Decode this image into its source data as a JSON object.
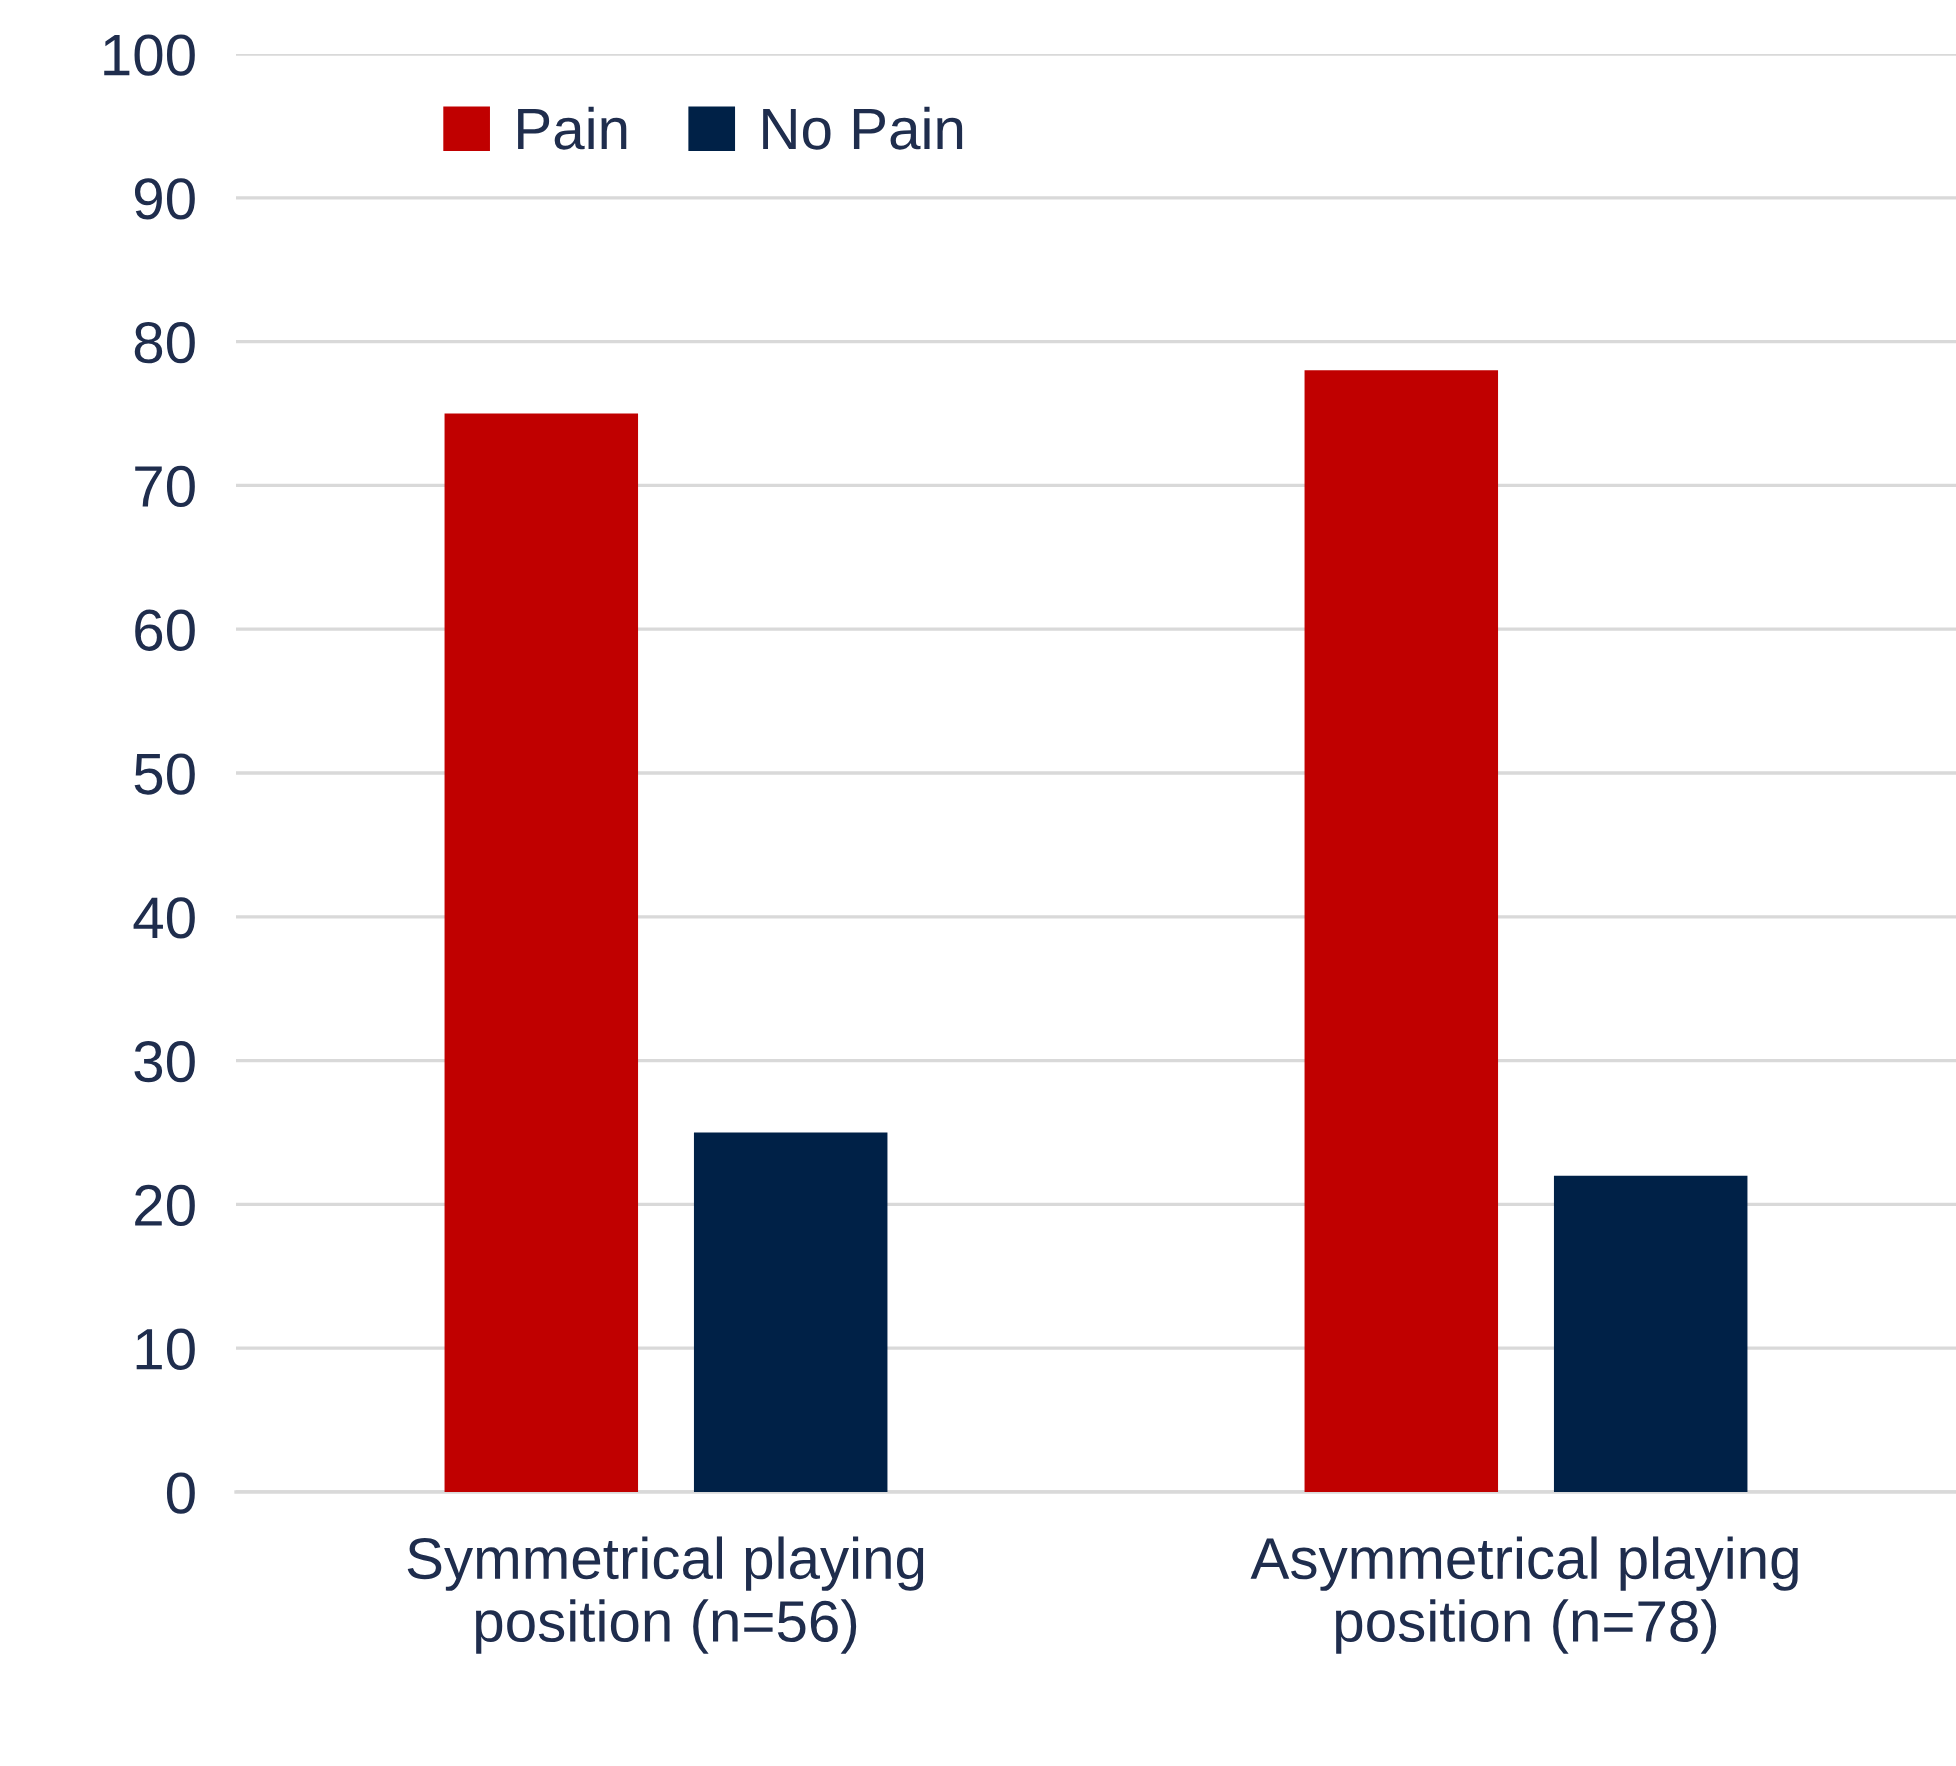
{
  "chart_data": {
    "type": "bar",
    "categories": [
      "Symmetrical playing position (n=56)",
      "Asymmetrical playing position (n=78)"
    ],
    "series": [
      {
        "name": "Pain",
        "color": "#c00000",
        "values": [
          75,
          78
        ]
      },
      {
        "name": "No Pain",
        "color": "#002147",
        "values": [
          25,
          22
        ]
      }
    ],
    "ylim": [
      0,
      100
    ],
    "yticks": [
      0,
      10,
      20,
      30,
      40,
      50,
      60,
      70,
      80,
      90,
      100
    ],
    "grid": "y",
    "legend": "top left"
  }
}
